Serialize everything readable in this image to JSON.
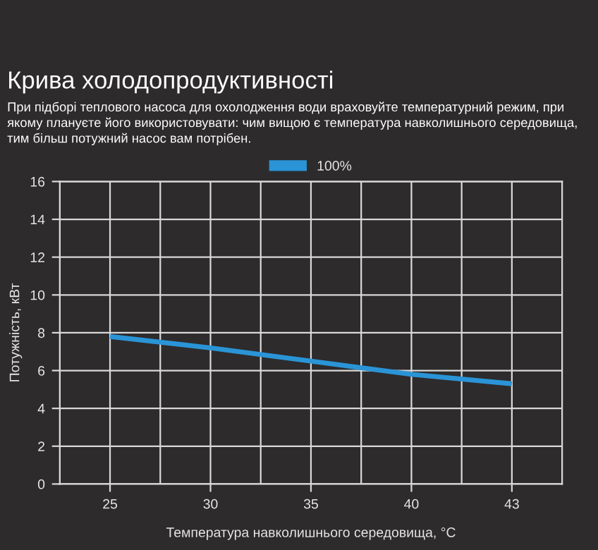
{
  "chart_data": {
    "type": "line",
    "title": "Крива холодопродуктивності",
    "subtitle": "При підборі теплового насоса для охолодження води враховуйте температурний режим, при якому плануєте його використовувати: чим вищою є температура навколишнього середовища, тим більш потужний насос вам потрібен.",
    "xlabel": "Температура навколишнього середовища, °C",
    "ylabel": "Потужність, кВт",
    "categories": [
      "25",
      "30",
      "35",
      "40",
      "43"
    ],
    "series": [
      {
        "name": "100%",
        "color": "#2a94d6",
        "values": [
          7.8,
          7.2,
          6.5,
          5.8,
          5.3
        ]
      }
    ],
    "ylim": [
      0,
      16
    ],
    "yticks": [
      0,
      2,
      4,
      6,
      8,
      10,
      12,
      14,
      16
    ],
    "grid": true,
    "legend": "top",
    "marker": "none",
    "line_style": "solid"
  }
}
